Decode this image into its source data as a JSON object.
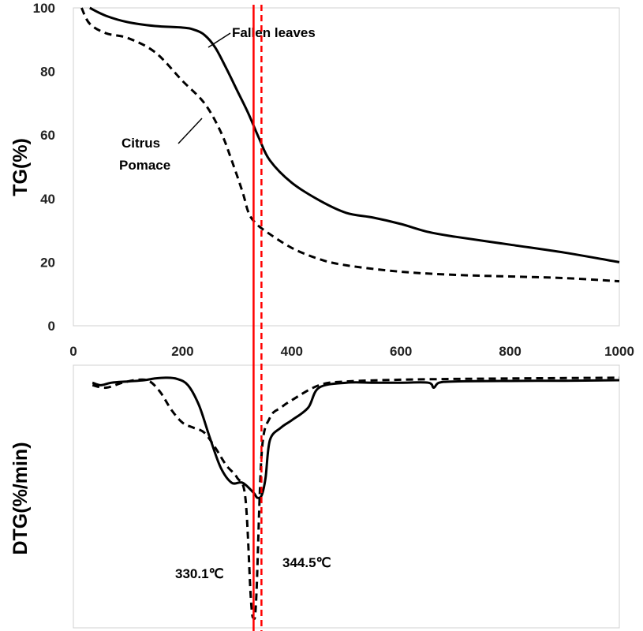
{
  "chart_data": [
    {
      "type": "line",
      "panel": "TG",
      "ylabel": "TG(%)",
      "xlabel": "",
      "xlim": [
        0,
        1000
      ],
      "ylim": [
        0,
        100
      ],
      "x_ticks": [
        0,
        200,
        400,
        600,
        800,
        1000
      ],
      "y_ticks": [
        0,
        20,
        40,
        60,
        80,
        100
      ],
      "grid": false,
      "series": [
        {
          "name": "Fallen leaves",
          "style": "solid",
          "x": [
            30,
            60,
            100,
            150,
            200,
            220,
            240,
            260,
            280,
            300,
            320,
            340,
            360,
            400,
            450,
            500,
            550,
            600,
            650,
            700,
            800,
            900,
            1000
          ],
          "y": [
            100,
            97.5,
            95.5,
            94.3,
            93.8,
            93.2,
            91.5,
            87.5,
            81,
            74,
            67,
            59,
            52,
            45,
            39.5,
            35.5,
            34,
            32,
            29.5,
            28,
            25.5,
            23,
            20
          ]
        },
        {
          "name": "Citrus Pomace",
          "style": "dashed",
          "x": [
            15,
            30,
            60,
            100,
            150,
            200,
            240,
            270,
            290,
            310,
            320,
            330,
            350,
            400,
            450,
            500,
            600,
            700,
            800,
            900,
            1000
          ],
          "y": [
            100,
            95,
            92,
            90.5,
            86,
            77,
            70,
            61,
            52,
            42,
            36,
            33,
            30,
            24.5,
            21,
            19,
            17,
            16,
            15.5,
            15,
            14
          ]
        }
      ],
      "annotations": [
        {
          "text": "Fallen leaves",
          "series": "Fallen leaves"
        },
        {
          "text": "Citrus Pomace",
          "series": "Citrus Pomace"
        }
      ]
    },
    {
      "type": "line",
      "panel": "DTG",
      "ylabel": "DTG(%/min)",
      "xlabel": "",
      "xlim": [
        0,
        1000
      ],
      "ylim": [
        -100,
        5
      ],
      "y_ticks_shown": false,
      "grid": false,
      "series": [
        {
          "name": "Fallen leaves",
          "style": "solid",
          "x": [
            35,
            50,
            70,
            100,
            130,
            150,
            170,
            190,
            210,
            230,
            250,
            270,
            290,
            310,
            330,
            337,
            345,
            352,
            360,
            380,
            400,
            430,
            450,
            500,
            550,
            600,
            650,
            660,
            670,
            700,
            800,
            900,
            1000
          ],
          "y": [
            -2,
            -3,
            -2,
            -1.5,
            -1,
            -0.3,
            0,
            -0.5,
            -3,
            -11,
            -24,
            -36,
            -42,
            -42,
            -46,
            -48,
            -47,
            -40,
            -25,
            -20,
            -17,
            -12,
            -4,
            -2,
            -2,
            -2,
            -2,
            -4,
            -2,
            -1.5,
            -1.3,
            -1.2,
            -1
          ]
        },
        {
          "name": "Citrus Pomace",
          "style": "dashed",
          "x": [
            35,
            60,
            90,
            120,
            140,
            160,
            180,
            200,
            220,
            240,
            260,
            280,
            300,
            315,
            325,
            330,
            335,
            345,
            360,
            380,
            400,
            450,
            500,
            600,
            700,
            800,
            1000
          ],
          "y": [
            -3,
            -4,
            -2,
            -0.8,
            -1.5,
            -6,
            -13,
            -18,
            -20,
            -22,
            -28,
            -35,
            -40,
            -48,
            -88,
            -96,
            -88,
            -30,
            -16,
            -12,
            -9,
            -3,
            -1.5,
            -0.8,
            -0.5,
            -0.3,
            0
          ]
        }
      ],
      "annotations": [
        {
          "text": "330.1℃",
          "x": 330.1
        },
        {
          "text": "344.5℃",
          "x": 344.5
        }
      ],
      "reference_lines": [
        {
          "x": 330.1,
          "style": "solid",
          "color": "#ff0000"
        },
        {
          "x": 344.5,
          "style": "dashed",
          "color": "#ff0000"
        }
      ]
    }
  ],
  "colors": {
    "series_line": "#000000",
    "reference_line": "#ff0000",
    "frame": "#d0d0d0"
  }
}
